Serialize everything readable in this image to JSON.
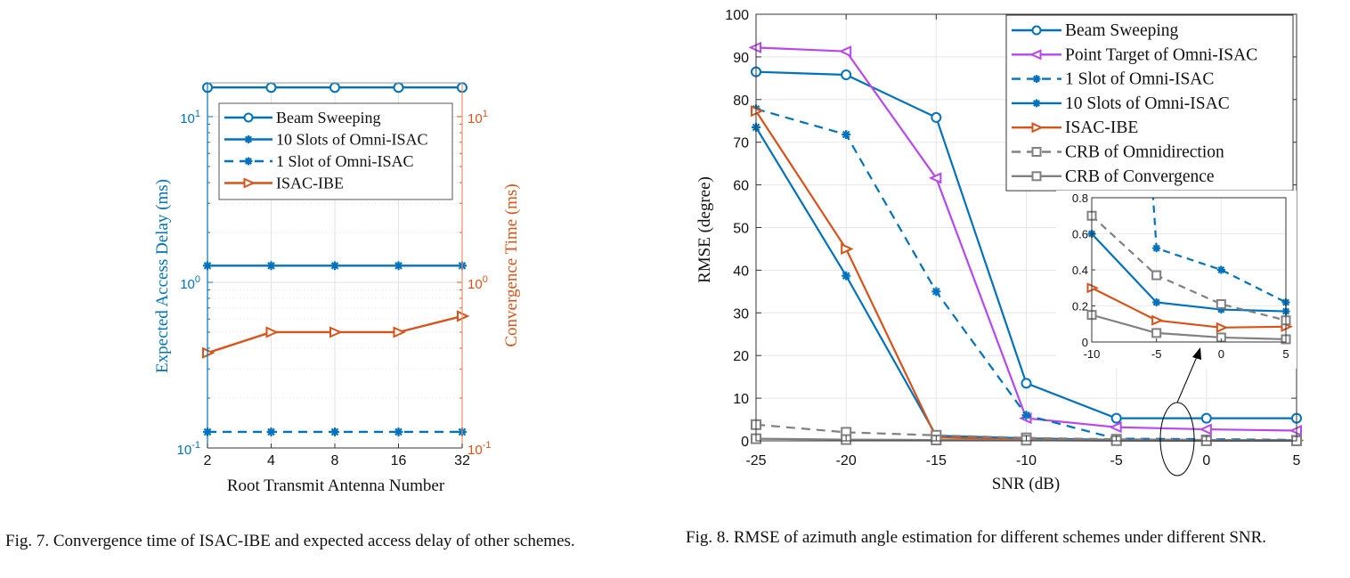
{
  "chart_data": [
    {
      "type": "line",
      "figure": "Fig. 7",
      "title": "",
      "xlabel": "Root Transmit Antenna Number",
      "ylabel_left": "Expected Access Delay (ms)",
      "ylabel_right": "Convergence Time (ms)",
      "yscale": "log",
      "ylim": [
        0.1,
        16
      ],
      "categories": [
        "2",
        "4",
        "8",
        "16",
        "32"
      ],
      "x_tick_labels": [
        "2",
        "4",
        "8",
        "16",
        "32"
      ],
      "y_tick_labels_left": [
        {
          "base": "10",
          "exp": "1",
          "value": 10
        },
        {
          "base": "10",
          "exp": "0",
          "value": 1
        },
        {
          "base": "10",
          "exp": "-1",
          "value": 0.1
        }
      ],
      "y_tick_labels_right": [
        {
          "base": "10",
          "exp": "1",
          "value": 10
        },
        {
          "base": "10",
          "exp": "0",
          "value": 1
        },
        {
          "base": "10",
          "exp": "-1",
          "value": 0.1
        }
      ],
      "grid": true,
      "legend_position": "top-center",
      "series": [
        {
          "name": "Beam Sweeping",
          "color": "#0072BD",
          "marker": "circle",
          "dash": false,
          "axis": "left",
          "values": [
            15,
            15,
            15,
            15,
            15
          ]
        },
        {
          "name": "10 Slots of Omni-ISAC",
          "color": "#0072BD",
          "marker": "asterisk",
          "dash": false,
          "axis": "left",
          "values": [
            1.26,
            1.26,
            1.26,
            1.26,
            1.26
          ]
        },
        {
          "name": "1 Slot of Omni-ISAC",
          "color": "#0072BD",
          "marker": "asterisk",
          "dash": true,
          "axis": "left",
          "values": [
            0.125,
            0.125,
            0.125,
            0.125,
            0.125
          ]
        },
        {
          "name": "ISAC-IBE",
          "color": "#D95319",
          "marker": "triangle-right",
          "dash": false,
          "axis": "right",
          "values": [
            0.375,
            0.5,
            0.5,
            0.5,
            0.625
          ]
        }
      ]
    },
    {
      "type": "line",
      "figure": "Fig. 8",
      "title": "",
      "xlabel": "SNR (dB)",
      "ylabel": "RMSE (degree)",
      "x": [
        -25,
        -20,
        -15,
        -10,
        -5,
        0,
        5
      ],
      "xlim": [
        -25,
        5
      ],
      "ylim": [
        0,
        100
      ],
      "x_tick_labels": [
        "-25",
        "-20",
        "-15",
        "-10",
        "-5",
        "0",
        "5"
      ],
      "y_tick_labels": [
        "0",
        "10",
        "20",
        "30",
        "40",
        "50",
        "60",
        "70",
        "80",
        "90",
        "100"
      ],
      "grid": true,
      "legend_position": "top-right",
      "series": [
        {
          "name": "Beam Sweeping",
          "color": "#0072BD",
          "marker": "circle",
          "dash": false,
          "values": [
            86.5,
            85.8,
            75.8,
            13.5,
            5.3,
            5.3,
            5.3
          ]
        },
        {
          "name": "Point Target of Omni-ISAC",
          "color": "#B847F0",
          "marker": "triangle-left",
          "dash": false,
          "values": [
            92.2,
            91.3,
            61.6,
            5.3,
            3.2,
            2.7,
            2.4
          ]
        },
        {
          "name": "1 Slot of Omni-ISAC",
          "color": "#0072BD",
          "marker": "asterisk",
          "dash": true,
          "values": [
            77.8,
            71.8,
            35.0,
            6.0,
            0.52,
            0.4,
            0.22
          ]
        },
        {
          "name": "10 Slots of Omni-ISAC",
          "color": "#0072BD",
          "marker": "asterisk",
          "dash": false,
          "values": [
            73.5,
            38.7,
            1.2,
            0.6,
            0.22,
            0.18,
            0.17
          ]
        },
        {
          "name": "ISAC-IBE",
          "color": "#D95319",
          "marker": "triangle-right",
          "dash": false,
          "values": [
            77.3,
            45.0,
            0.8,
            0.3,
            0.12,
            0.08,
            0.085
          ]
        },
        {
          "name": "CRB of Omnidirection",
          "color": "#808080",
          "marker": "square",
          "dash": true,
          "values": [
            3.8,
            2.0,
            1.3,
            0.7,
            0.37,
            0.21,
            0.12
          ]
        },
        {
          "name": "CRB of Convergence",
          "color": "#808080",
          "marker": "square",
          "dash": false,
          "values": [
            0.5,
            0.3,
            0.2,
            0.15,
            0.05,
            0.025,
            0.015
          ]
        }
      ],
      "inset": {
        "xlim": [
          -10,
          5
        ],
        "ylim": [
          0,
          0.8
        ],
        "x_tick_labels": [
          "-10",
          "-5",
          "0",
          "5"
        ],
        "y_tick_labels": [
          "0",
          "0.2",
          "0.4",
          "0.6",
          "0.8"
        ],
        "annotation": "zoomed region indicated by ellipse with arrow near SNR -2.5 dB"
      }
    }
  ],
  "captions": {
    "fig7": "Fig. 7.  Convergence time of ISAC-IBE and expected access delay of other schemes.",
    "fig8": "Fig. 8.  RMSE of azimuth angle estimation for different schemes under different SNR."
  }
}
